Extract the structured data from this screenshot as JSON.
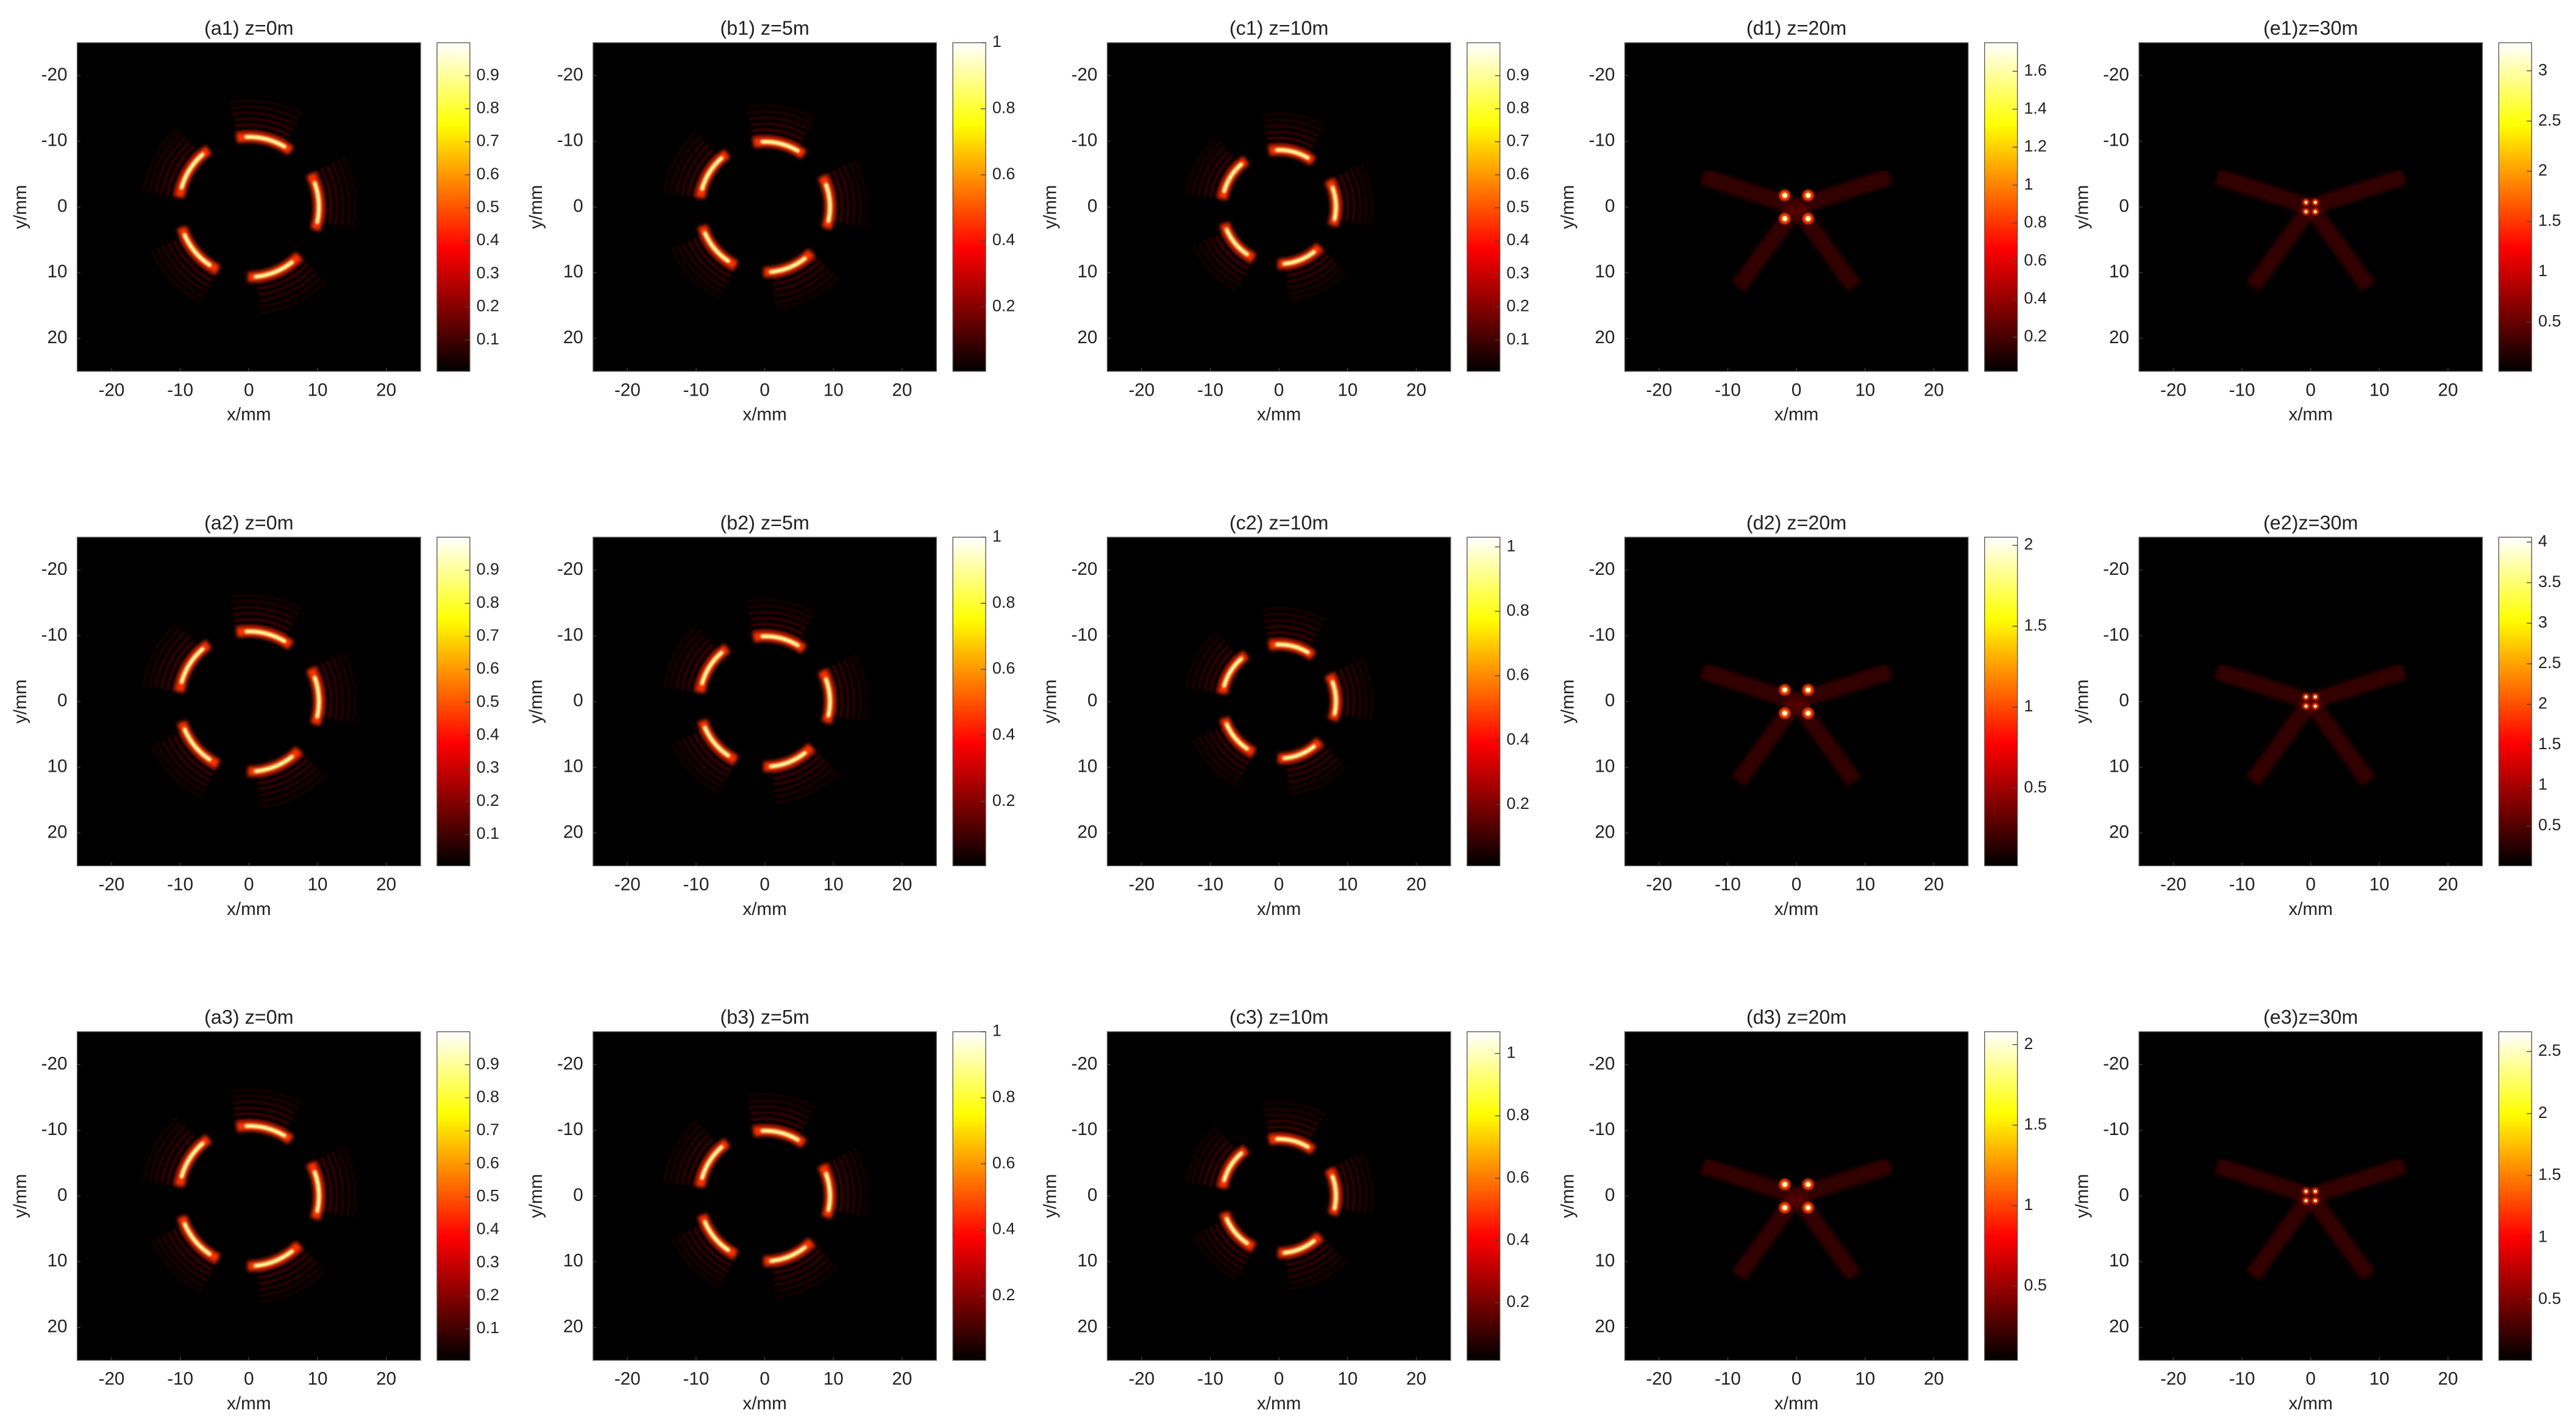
{
  "chart_data": [
    {
      "type": "heatmap",
      "title": "(a1) z=0m",
      "xlabel": "x/mm",
      "ylabel": "y/mm",
      "xlim": [
        -25,
        25
      ],
      "ylim": [
        25,
        -25
      ],
      "xticks": [
        -20,
        -10,
        0,
        10,
        20
      ],
      "yticks": [
        20,
        10,
        0,
        -10,
        -20
      ],
      "colormap": "hot",
      "clim": [
        0.005,
        1
      ],
      "cticks": [
        0.1,
        0.2,
        0.3,
        0.4,
        0.5,
        0.6,
        0.7,
        0.8,
        0.9
      ]
    },
    {
      "type": "heatmap",
      "title": "(b1) z=5m",
      "xlabel": "x/mm",
      "ylabel": "y/mm",
      "xlim": [
        -25,
        25
      ],
      "ylim": [
        25,
        -25
      ],
      "xticks": [
        -20,
        -10,
        0,
        10,
        20
      ],
      "yticks": [
        20,
        10,
        0,
        -10,
        -20
      ],
      "colormap": "hot",
      "clim": [
        0.005,
        1
      ],
      "cticks": [
        0.2,
        0.4,
        0.6,
        0.8,
        1
      ]
    },
    {
      "type": "heatmap",
      "title": "(c1) z=10m",
      "xlabel": "x/mm",
      "ylabel": "y/mm",
      "xlim": [
        -25,
        25
      ],
      "ylim": [
        25,
        -25
      ],
      "xticks": [
        -20,
        -10,
        0,
        10,
        20
      ],
      "yticks": [
        20,
        10,
        0,
        -10,
        -20
      ],
      "colormap": "hot",
      "clim": [
        0.005,
        1
      ],
      "cticks": [
        0.1,
        0.2,
        0.3,
        0.4,
        0.5,
        0.6,
        0.7,
        0.8,
        0.9
      ]
    },
    {
      "type": "heatmap",
      "title": "(d1) z=20m",
      "xlabel": "x/mm",
      "ylabel": "y/mm",
      "xlim": [
        -25,
        25
      ],
      "ylim": [
        25,
        -25
      ],
      "xticks": [
        -20,
        -10,
        0,
        10,
        20
      ],
      "yticks": [
        20,
        10,
        0,
        -10,
        -20
      ],
      "colormap": "hot",
      "clim": [
        0.02,
        1.75
      ],
      "cticks": [
        0.2,
        0.4,
        0.6,
        0.8,
        1,
        1.2,
        1.4,
        1.6
      ]
    },
    {
      "type": "heatmap",
      "title": "(e1)z=30m",
      "xlabel": "x/mm",
      "ylabel": "y/mm",
      "xlim": [
        -25,
        25
      ],
      "ylim": [
        25,
        -25
      ],
      "xticks": [
        -20,
        -10,
        0,
        10,
        20
      ],
      "yticks": [
        20,
        10,
        0,
        -10,
        -20
      ],
      "colormap": "hot",
      "clim": [
        0.01,
        3.28
      ],
      "cticks": [
        0.5,
        1,
        1.5,
        2,
        2.5,
        3
      ]
    },
    {
      "type": "heatmap",
      "title": "(a2) z=0m",
      "xlabel": "x/mm",
      "ylabel": "y/mm",
      "xlim": [
        -25,
        25
      ],
      "ylim": [
        25,
        -25
      ],
      "xticks": [
        -20,
        -10,
        0,
        10,
        20
      ],
      "yticks": [
        20,
        10,
        0,
        -10,
        -20
      ],
      "colormap": "hot",
      "clim": [
        0.005,
        1
      ],
      "cticks": [
        0.1,
        0.2,
        0.3,
        0.4,
        0.5,
        0.6,
        0.7,
        0.8,
        0.9
      ]
    },
    {
      "type": "heatmap",
      "title": "(b2) z=5m",
      "xlabel": "x/mm",
      "ylabel": "y/mm",
      "xlim": [
        -25,
        25
      ],
      "ylim": [
        25,
        -25
      ],
      "xticks": [
        -20,
        -10,
        0,
        10,
        20
      ],
      "yticks": [
        20,
        10,
        0,
        -10,
        -20
      ],
      "colormap": "hot",
      "clim": [
        0.005,
        1
      ],
      "cticks": [
        0.2,
        0.4,
        0.6,
        0.8,
        1
      ]
    },
    {
      "type": "heatmap",
      "title": "(c2) z=10m",
      "xlabel": "x/mm",
      "ylabel": "y/mm",
      "xlim": [
        -25,
        25
      ],
      "ylim": [
        25,
        -25
      ],
      "xticks": [
        -20,
        -10,
        0,
        10,
        20
      ],
      "yticks": [
        20,
        10,
        0,
        -10,
        -20
      ],
      "colormap": "hot",
      "clim": [
        0.01,
        1.03
      ],
      "cticks": [
        0.2,
        0.4,
        0.6,
        0.8,
        1
      ]
    },
    {
      "type": "heatmap",
      "title": "(d2) z=20m",
      "xlabel": "x/mm",
      "ylabel": "y/mm",
      "xlim": [
        -25,
        25
      ],
      "ylim": [
        25,
        -25
      ],
      "xticks": [
        -20,
        -10,
        0,
        10,
        20
      ],
      "yticks": [
        20,
        10,
        0,
        -10,
        -20
      ],
      "colormap": "hot",
      "clim": [
        0.02,
        2.05
      ],
      "cticks": [
        0.5,
        1,
        1.5,
        2
      ]
    },
    {
      "type": "heatmap",
      "title": "(e2)z=30m",
      "xlabel": "x/mm",
      "ylabel": "y/mm",
      "xlim": [
        -25,
        25
      ],
      "ylim": [
        25,
        -25
      ],
      "xticks": [
        -20,
        -10,
        0,
        10,
        20
      ],
      "yticks": [
        20,
        10,
        0,
        -10,
        -20
      ],
      "colormap": "hot",
      "clim": [
        0.01,
        4.06
      ],
      "cticks": [
        0.5,
        1,
        1.5,
        2,
        2.5,
        3,
        3.5,
        4
      ]
    },
    {
      "type": "heatmap",
      "title": "(a3) z=0m",
      "xlabel": "x/mm",
      "ylabel": "y/mm",
      "xlim": [
        -25,
        25
      ],
      "ylim": [
        25,
        -25
      ],
      "xticks": [
        -20,
        -10,
        0,
        10,
        20
      ],
      "yticks": [
        20,
        10,
        0,
        -10,
        -20
      ],
      "colormap": "hot",
      "clim": [
        0.005,
        1
      ],
      "cticks": [
        0.1,
        0.2,
        0.3,
        0.4,
        0.5,
        0.6,
        0.7,
        0.8,
        0.9
      ]
    },
    {
      "type": "heatmap",
      "title": "(b3) z=5m",
      "xlabel": "x/mm",
      "ylabel": "y/mm",
      "xlim": [
        -25,
        25
      ],
      "ylim": [
        25,
        -25
      ],
      "xticks": [
        -20,
        -10,
        0,
        10,
        20
      ],
      "yticks": [
        20,
        10,
        0,
        -10,
        -20
      ],
      "colormap": "hot",
      "clim": [
        0.005,
        1
      ],
      "cticks": [
        0.2,
        0.4,
        0.6,
        0.8,
        1
      ]
    },
    {
      "type": "heatmap",
      "title": "(c3) z=10m",
      "xlabel": "x/mm",
      "ylabel": "y/mm",
      "xlim": [
        -25,
        25
      ],
      "ylim": [
        25,
        -25
      ],
      "xticks": [
        -20,
        -10,
        0,
        10,
        20
      ],
      "yticks": [
        20,
        10,
        0,
        -10,
        -20
      ],
      "colormap": "hot",
      "clim": [
        0.015,
        1.07
      ],
      "cticks": [
        0.2,
        0.4,
        0.6,
        0.8,
        1
      ]
    },
    {
      "type": "heatmap",
      "title": "(d3) z=20m",
      "xlabel": "x/mm",
      "ylabel": "y/mm",
      "xlim": [
        -25,
        25
      ],
      "ylim": [
        25,
        -25
      ],
      "xticks": [
        -20,
        -10,
        0,
        10,
        20
      ],
      "yticks": [
        20,
        10,
        0,
        -10,
        -20
      ],
      "colormap": "hot",
      "clim": [
        0.04,
        2.08
      ],
      "cticks": [
        0.5,
        1,
        1.5,
        2
      ]
    },
    {
      "type": "heatmap",
      "title": "(e3)z=30m",
      "xlabel": "x/mm",
      "ylabel": "y/mm",
      "xlim": [
        -25,
        25
      ],
      "ylim": [
        25,
        -25
      ],
      "xticks": [
        -20,
        -10,
        0,
        10,
        20
      ],
      "yticks": [
        20,
        10,
        0,
        -10,
        -20
      ],
      "colormap": "hot",
      "clim": [
        0.01,
        2.66
      ],
      "cticks": [
        0.5,
        1,
        1.5,
        2,
        2.5
      ]
    }
  ]
}
